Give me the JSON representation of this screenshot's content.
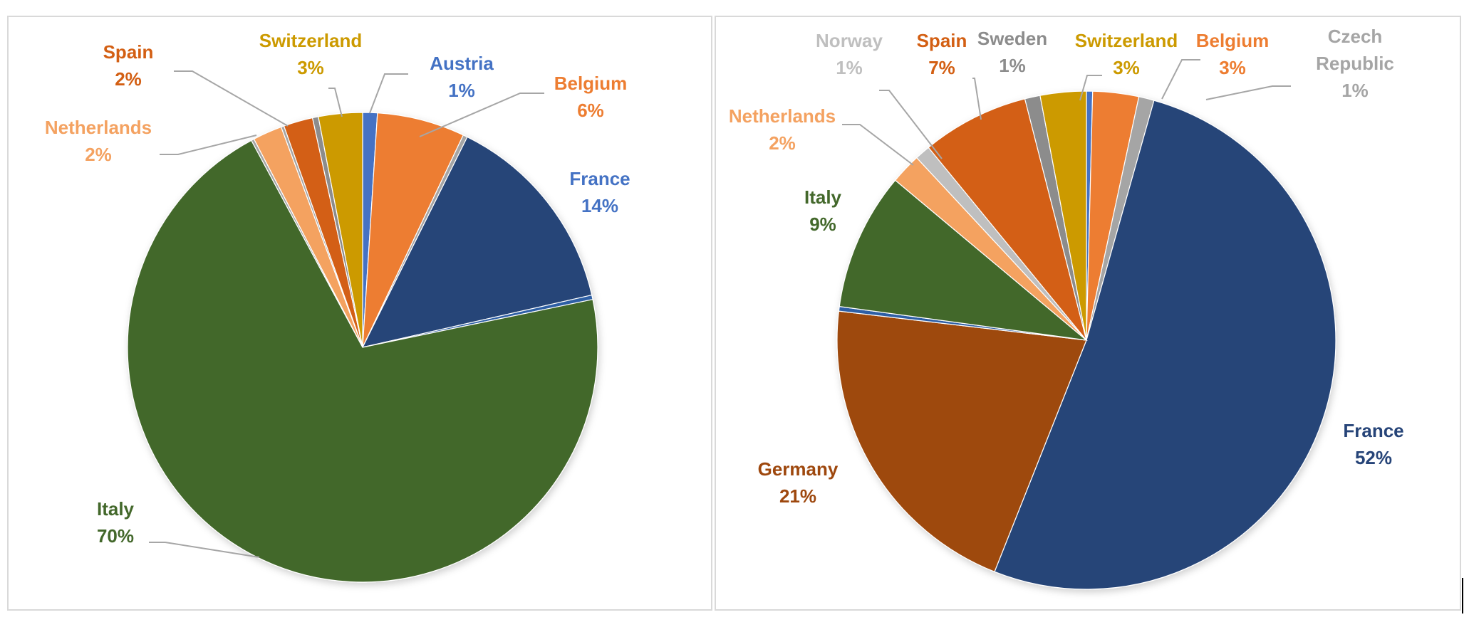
{
  "chart_data": [
    {
      "type": "pie",
      "slices": [
        {
          "label": "Austria",
          "value": 1,
          "display": "1%",
          "color": "#4472C4",
          "text_color": "#4472C4"
        },
        {
          "label": "Belgium",
          "value": 6,
          "display": "6%",
          "color": "#ED7D31",
          "text_color": "#ED7D31"
        },
        {
          "label": "",
          "value": 0.3,
          "display": "",
          "color": "#A5A5A5",
          "text_color": "#A5A5A5"
        },
        {
          "label": "France",
          "value": 14,
          "display": "14%",
          "color": "#264478",
          "text_color": "#4472C4"
        },
        {
          "label": "",
          "value": 0.3,
          "display": "",
          "color": "#2E5FA5",
          "text_color": "#2E5FA5"
        },
        {
          "label": "Italy",
          "value": 70,
          "display": "70%",
          "color": "#43682B",
          "text_color": "#43682B"
        },
        {
          "label": "",
          "value": 0.2,
          "display": "",
          "color": "#A5A5A5",
          "text_color": "#A5A5A5"
        },
        {
          "label": "Netherlands",
          "value": 2,
          "display": "2%",
          "color": "#F4A261",
          "text_color": "#F4A261"
        },
        {
          "label": "",
          "value": 0.2,
          "display": "",
          "color": "#A5A5A5",
          "text_color": "#A5A5A5"
        },
        {
          "label": "Spain",
          "value": 2,
          "display": "2%",
          "color": "#D35F13",
          "text_color": "#D35F13"
        },
        {
          "label": "",
          "value": 0.4,
          "display": "",
          "color": "#8C8C8C",
          "text_color": "#8C8C8C"
        },
        {
          "label": "Switzerland",
          "value": 3,
          "display": "3%",
          "color": "#CC9A00",
          "text_color": "#CC9A00"
        }
      ]
    },
    {
      "type": "pie",
      "slices": [
        {
          "label": "",
          "value": 0.4,
          "display": "",
          "color": "#4472C4",
          "text_color": "#4472C4"
        },
        {
          "label": "Belgium",
          "value": 3,
          "display": "3%",
          "color": "#ED7D31",
          "text_color": "#ED7D31"
        },
        {
          "label": "Czech Republic",
          "value": 1,
          "display": "1%",
          "color": "#A5A5A5",
          "text_color": "#A5A5A5"
        },
        {
          "label": "France",
          "value": 52,
          "display": "52%",
          "color": "#264478",
          "text_color": "#264478"
        },
        {
          "label": "Germany",
          "value": 21,
          "display": "21%",
          "color": "#9E480E",
          "text_color": "#9E480E"
        },
        {
          "label": "",
          "value": 0.3,
          "display": "",
          "color": "#2E5FA5",
          "text_color": "#2E5FA5"
        },
        {
          "label": "Italy",
          "value": 9,
          "display": "9%",
          "color": "#43682B",
          "text_color": "#43682B"
        },
        {
          "label": "Netherlands",
          "value": 2,
          "display": "2%",
          "color": "#F4A261",
          "text_color": "#F4A261"
        },
        {
          "label": "Norway",
          "value": 1,
          "display": "1%",
          "color": "#BFBFBF",
          "text_color": "#BFBFBF"
        },
        {
          "label": "Spain",
          "value": 7,
          "display": "7%",
          "color": "#D35F13",
          "text_color": "#D35F13"
        },
        {
          "label": "Sweden",
          "value": 1,
          "display": "1%",
          "color": "#8C8C8C",
          "text_color": "#8C8C8C"
        },
        {
          "label": "Switzerland",
          "value": 3,
          "display": "3%",
          "color": "#CC9A00",
          "text_color": "#CC9A00"
        }
      ]
    }
  ]
}
